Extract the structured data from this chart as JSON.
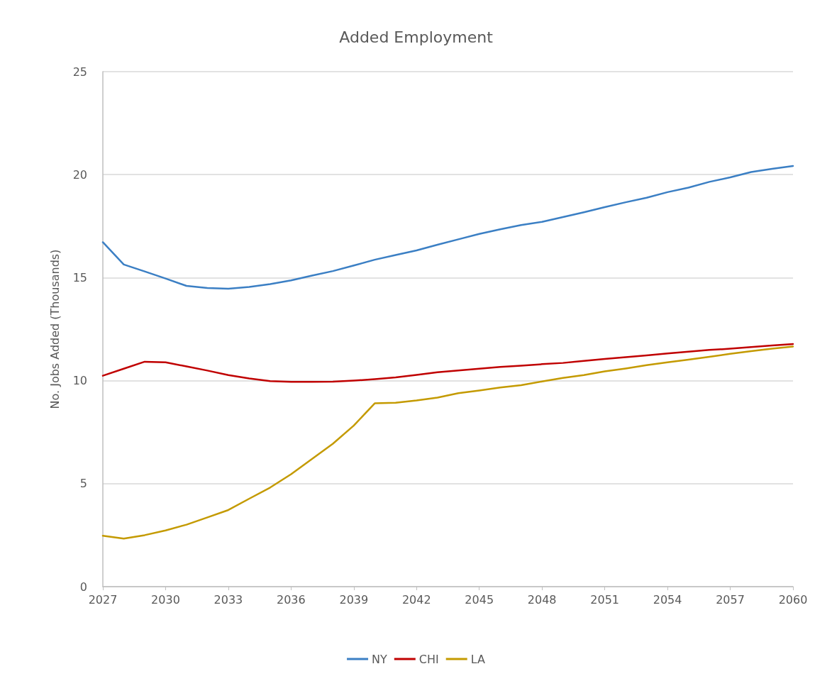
{
  "chart_data": {
    "type": "line",
    "title": "Added Employment",
    "ylabel": "No. Jobs Added (Thousands)",
    "x": [
      2027,
      2028,
      2029,
      2030,
      2031,
      2032,
      2033,
      2034,
      2035,
      2036,
      2037,
      2038,
      2039,
      2040,
      2041,
      2042,
      2043,
      2044,
      2045,
      2046,
      2047,
      2048,
      2049,
      2050,
      2051,
      2052,
      2053,
      2054,
      2055,
      2056,
      2057,
      2058,
      2059,
      2060
    ],
    "series": [
      {
        "name": "NY",
        "color": "#3b7fc4",
        "values": [
          16.72,
          15.64,
          15.3,
          14.96,
          14.6,
          14.5,
          14.46,
          14.55,
          14.69,
          14.87,
          15.1,
          15.32,
          15.59,
          15.87,
          16.1,
          16.32,
          16.6,
          16.86,
          17.12,
          17.35,
          17.55,
          17.71,
          17.94,
          18.17,
          18.42,
          18.66,
          18.88,
          19.15,
          19.37,
          19.65,
          19.87,
          20.13,
          20.28,
          20.42
        ]
      },
      {
        "name": "CHI",
        "color": "#c00000",
        "values": [
          10.24,
          10.58,
          10.92,
          10.89,
          10.69,
          10.49,
          10.27,
          10.11,
          9.98,
          9.94,
          9.94,
          9.95,
          10.0,
          10.07,
          10.16,
          10.28,
          10.41,
          10.49,
          10.58,
          10.67,
          10.73,
          10.8,
          10.86,
          10.96,
          11.05,
          11.14,
          11.23,
          11.32,
          11.41,
          11.49,
          11.55,
          11.63,
          11.71,
          11.78
        ]
      },
      {
        "name": "LA",
        "color": "#c49a00",
        "values": [
          2.47,
          2.33,
          2.5,
          2.73,
          3.01,
          3.36,
          3.72,
          4.27,
          4.81,
          5.46,
          6.2,
          6.94,
          7.82,
          8.9,
          8.93,
          9.04,
          9.18,
          9.39,
          9.52,
          9.67,
          9.78,
          9.96,
          10.13,
          10.27,
          10.45,
          10.59,
          10.75,
          10.89,
          11.02,
          11.16,
          11.3,
          11.43,
          11.55,
          11.66
        ]
      }
    ],
    "xlim": [
      2027,
      2060
    ],
    "xticks": [
      2027,
      2030,
      2033,
      2036,
      2039,
      2042,
      2045,
      2048,
      2051,
      2054,
      2057,
      2060
    ],
    "ylim": [
      0,
      25
    ],
    "yticks": [
      0,
      5,
      10,
      15,
      20,
      25
    ],
    "grid": "y",
    "legend": "bottom",
    "marker": "none",
    "line_style": "solid"
  }
}
